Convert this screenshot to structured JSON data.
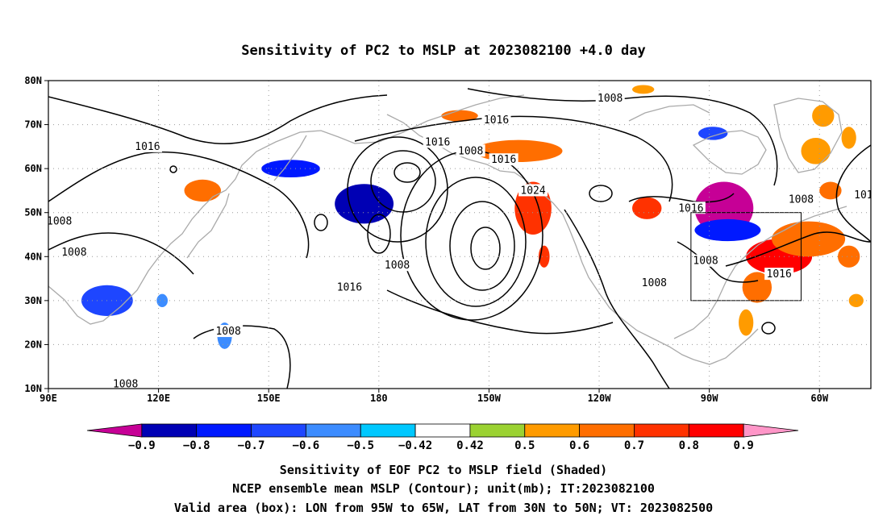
{
  "title": "Sensitivity of PC2 to MSLP at 2023082100 +4.0 day",
  "map": {
    "lat_ticks": [
      "80N",
      "70N",
      "60N",
      "50N",
      "40N",
      "30N",
      "20N",
      "10N"
    ],
    "lon_ticks": [
      "90E",
      "120E",
      "150E",
      "180",
      "150W",
      "120W",
      "90W",
      "60W"
    ],
    "lon_range": [
      90,
      314
    ],
    "lat_range": [
      10,
      80
    ],
    "grid": "dotted",
    "coastline_color": "#aaaaaa",
    "contour_color": "#000000"
  },
  "contour_labels": [
    {
      "text": "1016",
      "lon": 117,
      "lat": 65
    },
    {
      "text": "1016",
      "lon": 196,
      "lat": 66
    },
    {
      "text": "1016",
      "lon": 212,
      "lat": 71
    },
    {
      "text": "1016",
      "lon": 214,
      "lat": 62
    },
    {
      "text": "1016",
      "lon": 172,
      "lat": 33
    },
    {
      "text": "1016",
      "lon": 265,
      "lat": 51
    },
    {
      "text": "1016",
      "lon": 289,
      "lat": 36
    },
    {
      "text": "1008",
      "lon": 205,
      "lat": 64
    },
    {
      "text": "1008",
      "lon": 243,
      "lat": 76
    },
    {
      "text": "1008",
      "lon": 295,
      "lat": 53
    },
    {
      "text": "1008",
      "lon": 93,
      "lat": 48
    },
    {
      "text": "1008",
      "lon": 97,
      "lat": 41
    },
    {
      "text": "1008",
      "lon": 185,
      "lat": 38
    },
    {
      "text": "1008",
      "lon": 255,
      "lat": 34
    },
    {
      "text": "1008",
      "lon": 269,
      "lat": 39
    },
    {
      "text": "1008",
      "lon": 139,
      "lat": 23
    },
    {
      "text": "1008",
      "lon": 111,
      "lat": 11
    },
    {
      "text": "1024",
      "lon": 222,
      "lat": 55
    },
    {
      "text": "101",
      "lon": 312,
      "lat": 54
    }
  ],
  "valid_box": {
    "lon_min": 265,
    "lon_max": 295,
    "lat_min": 30,
    "lat_max": 50
  },
  "shaded_patches": [
    {
      "lon": 202,
      "lat": 72,
      "rlon": 5,
      "rlat": 1.3,
      "level": "0.6"
    },
    {
      "lon": 252,
      "lat": 78,
      "rlon": 3,
      "rlat": 1,
      "level": "0.5"
    },
    {
      "lon": 271,
      "lat": 68,
      "rlon": 4,
      "rlat": 1.5,
      "level": "-0.6"
    },
    {
      "lon": 301,
      "lat": 72,
      "rlon": 3,
      "rlat": 2.5,
      "level": "0.5"
    },
    {
      "lon": 299,
      "lat": 64,
      "rlon": 4,
      "rlat": 3,
      "level": "0.5"
    },
    {
      "lon": 308,
      "lat": 67,
      "rlon": 2,
      "rlat": 2.5,
      "level": "0.5"
    },
    {
      "lon": 132,
      "lat": 55,
      "rlon": 5,
      "rlat": 2.5,
      "level": "0.6"
    },
    {
      "lon": 156,
      "lat": 60,
      "rlon": 8,
      "rlat": 2,
      "level": "-0.7"
    },
    {
      "lon": 176,
      "lat": 52,
      "rlon": 8,
      "rlat": 4.5,
      "level": "-0.8"
    },
    {
      "lon": 218,
      "lat": 64,
      "rlon": 12,
      "rlat": 2.5,
      "level": "0.6"
    },
    {
      "lon": 222,
      "lat": 51,
      "rlon": 5,
      "rlat": 6,
      "level": "0.7"
    },
    {
      "lon": 225,
      "lat": 40,
      "rlon": 1.5,
      "rlat": 2.5,
      "level": "0.7"
    },
    {
      "lon": 253,
      "lat": 51,
      "rlon": 4,
      "rlat": 2.5,
      "level": "0.7"
    },
    {
      "lon": 274,
      "lat": 51,
      "rlon": 8,
      "rlat": 6,
      "level": "-0.9"
    },
    {
      "lon": 275,
      "lat": 46,
      "rlon": 9,
      "rlat": 2.5,
      "level": "-0.7"
    },
    {
      "lon": 289,
      "lat": 40,
      "rlon": 9,
      "rlat": 4,
      "level": "0.8"
    },
    {
      "lon": 297,
      "lat": 44,
      "rlon": 10,
      "rlat": 4,
      "level": "0.6"
    },
    {
      "lon": 283,
      "lat": 33,
      "rlon": 4,
      "rlat": 3.5,
      "level": "0.6"
    },
    {
      "lon": 280,
      "lat": 25,
      "rlon": 2,
      "rlat": 3,
      "level": "0.5"
    },
    {
      "lon": 303,
      "lat": 55,
      "rlon": 3,
      "rlat": 2,
      "level": "0.6"
    },
    {
      "lon": 106,
      "lat": 30,
      "rlon": 7,
      "rlat": 3.5,
      "level": "-0.6"
    },
    {
      "lon": 121,
      "lat": 30,
      "rlon": 1.5,
      "rlat": 1.5,
      "level": "-0.5"
    },
    {
      "lon": 138,
      "lat": 22,
      "rlon": 2,
      "rlat": 3,
      "level": "-0.5"
    },
    {
      "lon": 310,
      "lat": 30,
      "rlon": 2,
      "rlat": 1.5,
      "level": "0.5"
    },
    {
      "lon": 308,
      "lat": 40,
      "rlon": 3,
      "rlat": 2.5,
      "level": "0.6"
    }
  ],
  "colorbar": {
    "levels": [
      "-0.9",
      "-0.8",
      "-0.7",
      "-0.6",
      "-0.5",
      "-0.42",
      "0.42",
      "0.5",
      "0.6",
      "0.7",
      "0.8",
      "0.9"
    ],
    "colors": [
      "#c60096",
      "#0000b4",
      "#0019ff",
      "#1e46ff",
      "#3c8cff",
      "#00c8ff",
      "#ffffff",
      "#9bd232",
      "#ff9b00",
      "#ff6e00",
      "#ff3200",
      "#ff0000",
      "#ff96c8"
    ]
  },
  "footer": [
    "Sensitivity of EOF PC2 to MSLP field (Shaded)",
    "NCEP ensemble mean MSLP (Contour); unit(mb); IT:2023082100",
    "Valid area (box): LON from 95W to 65W, LAT from 30N to 50N; VT: 2023082500"
  ]
}
